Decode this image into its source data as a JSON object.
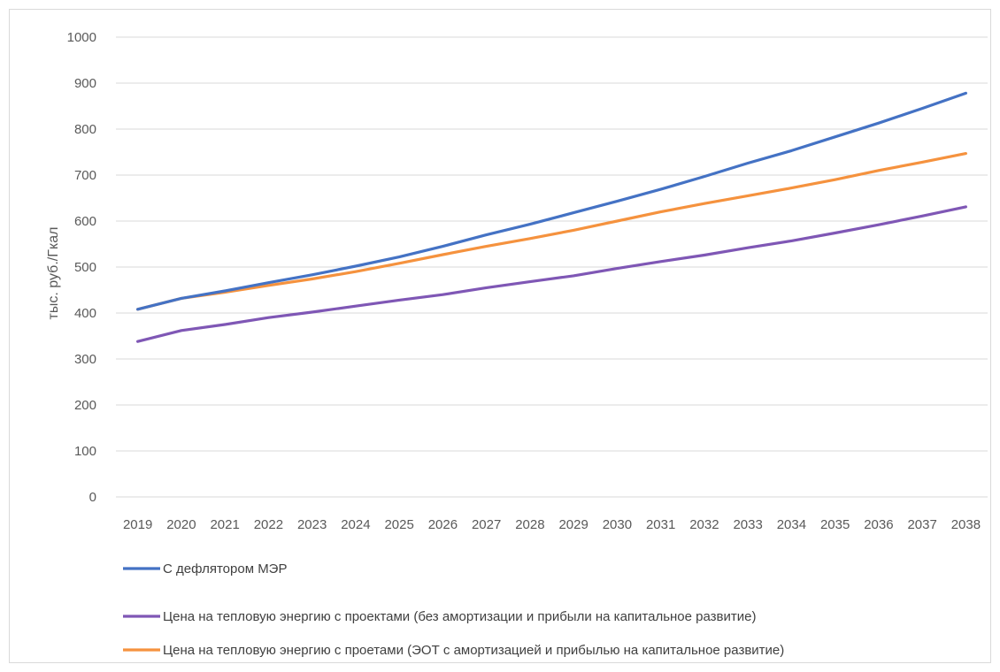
{
  "chart_data": {
    "type": "line",
    "ylabel": "тыс. руб./Гкал",
    "ylim": [
      0,
      1000
    ],
    "yticks": [
      "0",
      "100",
      "200",
      "300",
      "400",
      "500",
      "600",
      "700",
      "800",
      "900",
      "1000"
    ],
    "categories": [
      "2019",
      "2020",
      "2021",
      "2022",
      "2023",
      "2024",
      "2025",
      "2026",
      "2027",
      "2028",
      "2029",
      "2030",
      "2031",
      "2032",
      "2033",
      "2034",
      "2035",
      "2036",
      "2037",
      "2038"
    ],
    "grid": true,
    "legend_position": "bottom",
    "series": [
      {
        "name": "С дефлятором МЭР",
        "color": "#4472c4",
        "values": [
          408,
          432,
          448,
          466,
          483,
          502,
          522,
          545,
          570,
          593,
          618,
          643,
          669,
          697,
          726,
          753,
          783,
          813,
          845,
          878
        ]
      },
      {
        "name": "Цена на тепловую энергию  с проектами (без амортизации и прибыли на капитальное развитие)",
        "color": "#7f57b5",
        "values": [
          338,
          362,
          375,
          390,
          402,
          415,
          428,
          440,
          455,
          468,
          481,
          497,
          512,
          526,
          542,
          557,
          574,
          592,
          611,
          631
        ]
      },
      {
        "name": "Цена на тепловую энергию с проетами (ЭОТ с амортизацией и прибылью на капитальное развитие)",
        "color": "#f5923e",
        "values": [
          408,
          432,
          445,
          460,
          474,
          490,
          508,
          527,
          545,
          562,
          580,
          600,
          620,
          638,
          655,
          672,
          690,
          710,
          728,
          747
        ]
      }
    ]
  }
}
